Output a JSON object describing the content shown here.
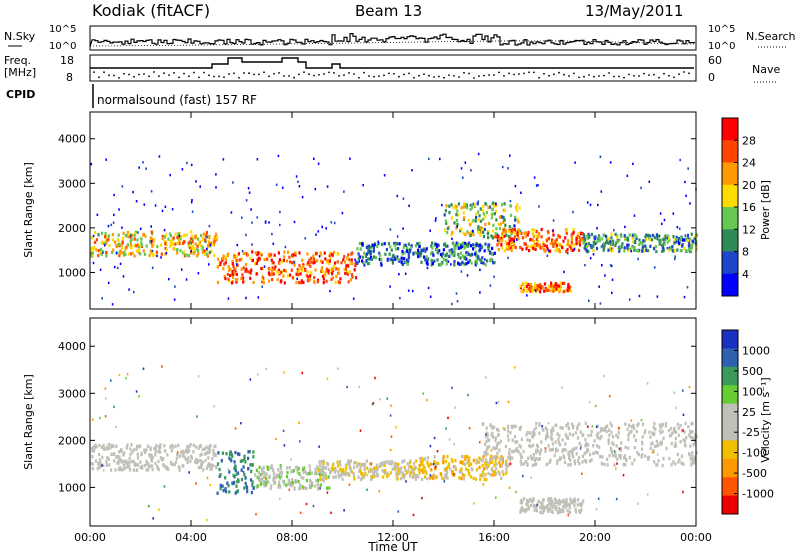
{
  "header": {
    "station": "Kodiak (fitACF)",
    "beam": "Beam 13",
    "date": "13/May/2011"
  },
  "mini_panels": {
    "nsky_label": "N.Sky",
    "nsearch_label": "N.Search",
    "nsky_ticks": [
      "10^5",
      "10^0"
    ],
    "nsearch_ticks": [
      "10^5",
      "10^0"
    ],
    "freq_label": "Freq.",
    "freq_unit": "[MHz]",
    "freq_ticks": [
      "18",
      "8"
    ],
    "nave_label": "Nave",
    "nave_ticks": [
      "60",
      "0"
    ],
    "cpid_label": "CPID",
    "cpid_text": "normalsound (fast) 157 RF"
  },
  "colors": {
    "power_scale": [
      "#0000ff",
      "#1e46c8",
      "#2e8b57",
      "#66c850",
      "#ffdc00",
      "#ff9900",
      "#ff4400",
      "#ff0000"
    ],
    "velocity_scale": [
      "#ee0000",
      "#ff5500",
      "#ff9900",
      "#f0c000",
      "#c0c0b8",
      "#c0c0b8",
      "#66cc33",
      "#3a9a5a",
      "#3060b0",
      "#1a30c0"
    ],
    "ground_scatter": "#c0c0b8"
  },
  "chart_data": [
    {
      "type": "heatmap",
      "title": "",
      "xlabel": "",
      "ylabel": "Slant Range [km]",
      "x_ticks": [
        "00:00",
        "04:00",
        "08:00",
        "12:00",
        "16:00",
        "20:00",
        "00:00"
      ],
      "y_ticks": [
        "1000",
        "2000",
        "3000",
        "4000"
      ],
      "xlim": [
        0,
        24
      ],
      "ylim": [
        180,
        4600
      ],
      "colorbar": {
        "label": "Power [dB]",
        "ticks": [
          "28",
          "24",
          "20",
          "16",
          "12",
          "8",
          "4"
        ],
        "range": [
          0,
          30
        ]
      },
      "scatter_bands": [
        {
          "t": [
            0,
            5
          ],
          "range": [
            1400,
            1950
          ],
          "power": 18
        },
        {
          "t": [
            5,
            10.5
          ],
          "range": [
            800,
            1500
          ],
          "power": 24
        },
        {
          "t": [
            10.5,
            16
          ],
          "range": [
            1200,
            1700
          ],
          "power": 8
        },
        {
          "t": [
            14,
            17
          ],
          "range": [
            1800,
            2600
          ],
          "power": 14
        },
        {
          "t": [
            16,
            19.5
          ],
          "range": [
            1500,
            2000
          ],
          "power": 22
        },
        {
          "t": [
            17,
            19
          ],
          "range": [
            600,
            800
          ],
          "power": 22
        },
        {
          "t": [
            19.5,
            24
          ],
          "range": [
            1500,
            1900
          ],
          "power": 10
        }
      ]
    },
    {
      "type": "heatmap",
      "title": "",
      "xlabel": "Time UT",
      "ylabel": "Slant Range [km]",
      "x_ticks": [
        "00:00",
        "04:00",
        "08:00",
        "12:00",
        "16:00",
        "20:00",
        "00:00"
      ],
      "y_ticks": [
        "1000",
        "2000",
        "3000",
        "4000"
      ],
      "xlim": [
        0,
        24
      ],
      "ylim": [
        180,
        4600
      ],
      "colorbar": {
        "label": "Velocity [m s⁻¹]",
        "ticks": [
          "1000",
          "500",
          "100",
          "25",
          "-25",
          "-100",
          "-500",
          "-1000"
        ],
        "range": [
          -1000,
          1000
        ]
      },
      "scatter_bands": [
        {
          "t": [
            0,
            5
          ],
          "range": [
            1400,
            1950
          ],
          "velocity": 0,
          "ground": true
        },
        {
          "t": [
            5,
            6.5
          ],
          "range": [
            900,
            1800
          ],
          "velocity": 600
        },
        {
          "t": [
            6.5,
            9.5
          ],
          "range": [
            1000,
            1500
          ],
          "velocity": 150
        },
        {
          "t": [
            9,
            13
          ],
          "range": [
            1200,
            1600
          ],
          "velocity": -150
        },
        {
          "t": [
            13,
            16.5
          ],
          "range": [
            1200,
            1700
          ],
          "velocity": -300
        },
        {
          "t": [
            15.5,
            24
          ],
          "range": [
            1500,
            2400
          ],
          "velocity": 0,
          "ground": true
        },
        {
          "t": [
            17,
            19.5
          ],
          "range": [
            500,
            800
          ],
          "velocity": 0,
          "ground": true
        }
      ]
    }
  ]
}
